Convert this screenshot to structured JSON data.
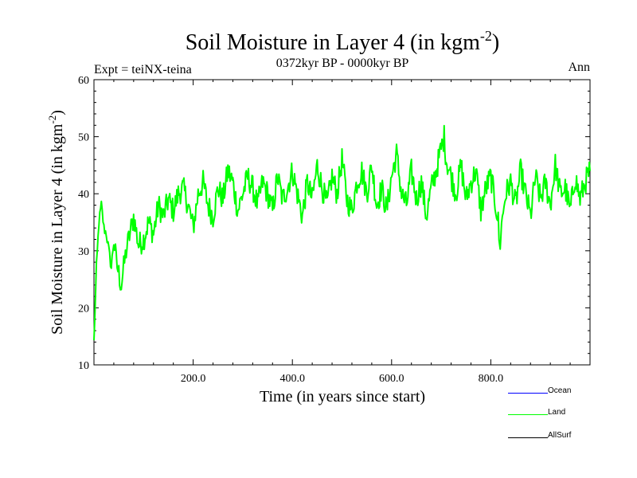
{
  "chart_data": {
    "type": "line",
    "title": "Soil Moisture in Layer 4 (in kgm",
    "title_sup": "-2",
    "title_end": ")",
    "subtitle": "0372kyr BP - 0000kyr BP",
    "expt_label": "Expt = teiNX-teina",
    "season_label": "Ann",
    "xlabel": "Time (in years since start)",
    "ylabel": "Soil Moisture in Layer 4 (in kgm",
    "ylabel_sup": "-2",
    "ylabel_end": ")",
    "xlim": [
      0,
      1000
    ],
    "ylim": [
      10,
      60
    ],
    "xticks": [
      200,
      400,
      600,
      800
    ],
    "xtick_labels": [
      "200.0",
      "400.0",
      "600.0",
      "800.0"
    ],
    "yticks": [
      10,
      20,
      30,
      40,
      50,
      60
    ],
    "ytick_labels": [
      "10",
      "20",
      "30",
      "40",
      "50",
      "60"
    ],
    "legend": [
      {
        "name": "Ocean",
        "color": "#0000ff"
      },
      {
        "name": "Land",
        "color": "#00ff00"
      },
      {
        "name": "AllSurf",
        "color": "#000000"
      }
    ],
    "series": [
      {
        "name": "Land",
        "color": "#00ff00",
        "x": [
          0,
          5,
          10,
          15,
          20,
          25,
          30,
          35,
          40,
          45,
          50,
          55,
          60,
          65,
          70,
          75,
          80,
          90,
          100,
          110,
          120,
          130,
          140,
          150,
          160,
          170,
          180,
          190,
          200,
          210,
          220,
          230,
          240,
          250,
          260,
          270,
          280,
          290,
          300,
          310,
          320,
          330,
          340,
          350,
          360,
          370,
          380,
          390,
          400,
          410,
          420,
          430,
          440,
          450,
          460,
          470,
          480,
          490,
          500,
          510,
          520,
          530,
          540,
          550,
          560,
          570,
          580,
          590,
          600,
          610,
          620,
          630,
          640,
          650,
          660,
          670,
          680,
          690,
          700,
          706,
          710,
          720,
          730,
          740,
          750,
          760,
          770,
          780,
          790,
          800,
          810,
          815,
          818,
          820,
          825,
          830,
          840,
          850,
          860,
          870,
          880,
          890,
          900,
          910,
          920,
          930,
          940,
          950,
          960,
          970,
          980,
          990,
          1000
        ],
        "values": [
          14,
          27,
          35,
          38,
          34,
          33,
          30,
          27,
          32,
          28,
          26,
          24,
          27,
          30,
          32,
          34,
          36,
          31,
          32,
          35,
          33,
          38,
          36,
          39,
          37,
          40,
          41,
          38,
          34,
          40,
          42,
          38,
          36,
          41,
          39,
          44,
          42,
          37,
          40,
          43,
          41,
          38,
          42,
          40,
          37,
          43,
          39,
          41,
          44,
          40,
          36,
          42,
          39,
          45,
          41,
          38,
          43,
          40,
          46,
          39,
          37,
          42,
          44,
          40,
          45,
          38,
          41,
          37,
          43,
          47,
          40,
          38,
          44,
          39,
          42,
          36,
          41,
          44,
          48,
          50,
          46,
          43,
          40,
          45,
          39,
          42,
          44,
          37,
          41,
          43,
          38,
          35,
          30,
          33,
          37,
          40,
          42,
          38,
          44,
          40,
          36,
          43,
          39,
          42,
          38,
          45,
          40,
          41,
          37,
          43,
          39,
          42,
          44
        ]
      }
    ]
  }
}
